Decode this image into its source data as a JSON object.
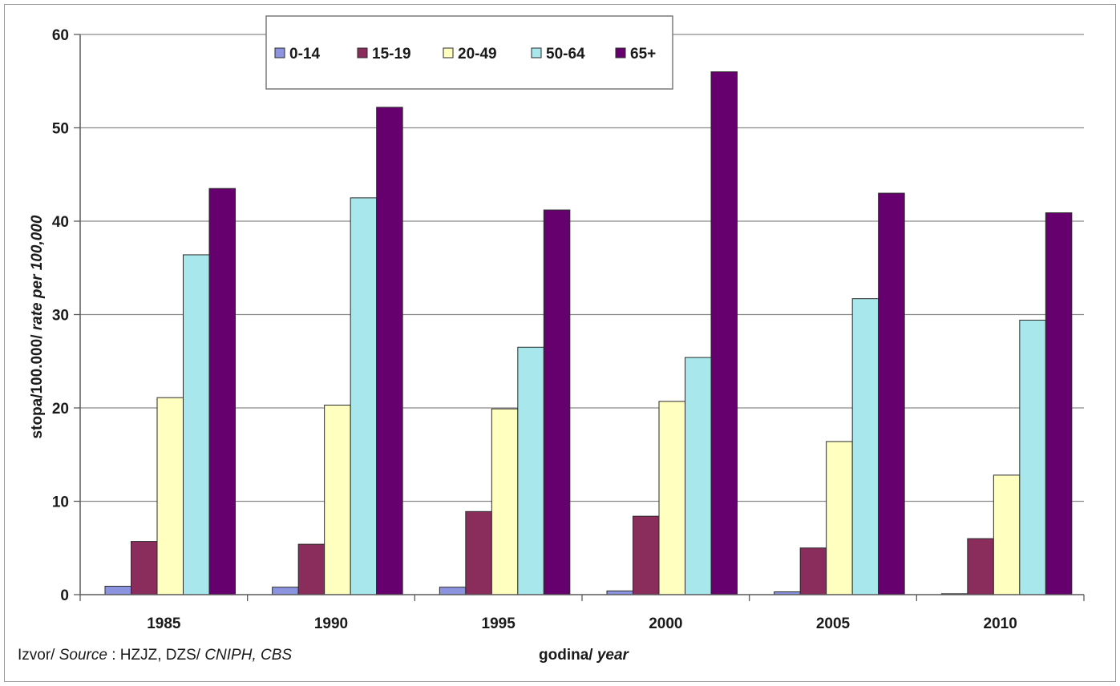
{
  "chart_data": {
    "type": "bar",
    "categories": [
      "1985",
      "1990",
      "1995",
      "2000",
      "2005",
      "2010"
    ],
    "series": [
      {
        "name": "0-14",
        "color": "#8c94e0",
        "values": [
          0.9,
          0.8,
          0.8,
          0.4,
          0.3,
          0.1
        ]
      },
      {
        "name": "15-19",
        "color": "#8b2d5c",
        "values": [
          5.7,
          5.4,
          8.9,
          8.4,
          5.0,
          6.0
        ]
      },
      {
        "name": "20-49",
        "color": "#ffffc0",
        "values": [
          21.1,
          20.3,
          19.9,
          20.7,
          16.4,
          12.8
        ]
      },
      {
        "name": "50-64",
        "color": "#a8e8ec",
        "values": [
          36.4,
          42.5,
          26.5,
          25.4,
          31.7,
          29.4
        ]
      },
      {
        "name": "65+",
        "color": "#66006e",
        "values": [
          43.5,
          52.2,
          41.2,
          56.0,
          43.0,
          40.9
        ]
      }
    ],
    "ylim": [
      0,
      60
    ],
    "yticks": [
      "0",
      "10",
      "20",
      "30",
      "40",
      "50",
      "60"
    ],
    "ylabel": {
      "plain": "stopa/100.000/ ",
      "italic": "rate per 100,000"
    },
    "xlabel": {
      "plain": "godina/ ",
      "italic": "year"
    },
    "grid": true,
    "legend_position": "top"
  },
  "source": {
    "prefix_plain": "Izvor/ ",
    "prefix_italic": "Source",
    "middle_plain": " : HZJZ, DZS/ ",
    "suffix_italic": "CNIPH, CBS"
  }
}
